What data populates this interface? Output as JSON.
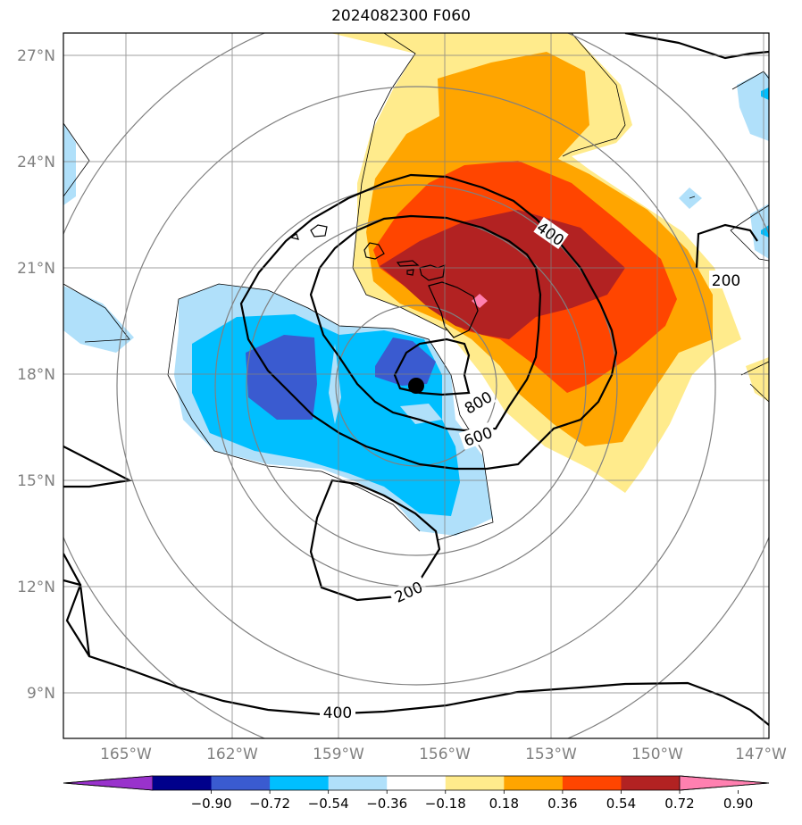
{
  "title": "2024082300 F060",
  "lat_labels": [
    "27°N",
    "24°N",
    "21°N",
    "18°N",
    "15°N",
    "12°N",
    "9°N"
  ],
  "lon_labels": [
    "165°W",
    "162°W",
    "159°W",
    "156°W",
    "153°W",
    "150°W",
    "147°W"
  ],
  "contour_labels": [
    "400",
    "200",
    "800",
    "600",
    "200",
    "400"
  ],
  "colorbar": {
    "tick_labels": [
      "−0.90",
      "−0.72",
      "−0.54",
      "−0.36",
      "−0.18",
      "0.18",
      "0.36",
      "0.54",
      "0.72",
      "0.90"
    ],
    "colors": [
      "#9932cc",
      "#00008b",
      "#3a5bd0",
      "#00bfff",
      "#b0e0fa",
      "#ffffff",
      "#ffeb8c",
      "#ffa500",
      "#ff4500",
      "#b22222",
      "#ff80b0"
    ]
  },
  "marker": "storm-center-dot"
}
